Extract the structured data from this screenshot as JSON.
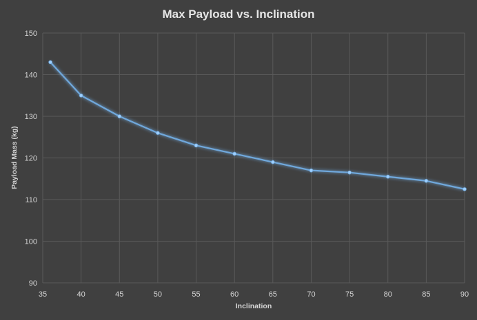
{
  "chart_data": {
    "type": "line",
    "title": "Max Payload vs. Inclination",
    "xlabel": "Inclination",
    "ylabel": "Payload Mass (kg)",
    "xlim": [
      35,
      90
    ],
    "ylim": [
      90,
      150
    ],
    "x_ticks": [
      35,
      40,
      45,
      50,
      55,
      60,
      65,
      70,
      75,
      80,
      85,
      90
    ],
    "y_ticks": [
      90,
      100,
      110,
      120,
      130,
      140,
      150
    ],
    "grid": true,
    "legend": "none",
    "colors": {
      "background": "#404040",
      "grid": "#5a5a5a",
      "line": "#6fa8dc",
      "marker": "#9fd0ff",
      "text": "#d4d4d4"
    },
    "series": [
      {
        "x": [
          36,
          40,
          45,
          50,
          55,
          60,
          65,
          70,
          75,
          80,
          85,
          90
        ],
        "y": [
          143,
          135,
          130,
          126,
          123,
          121,
          119,
          117,
          116.5,
          115.5,
          114.5,
          112.5
        ]
      }
    ]
  }
}
